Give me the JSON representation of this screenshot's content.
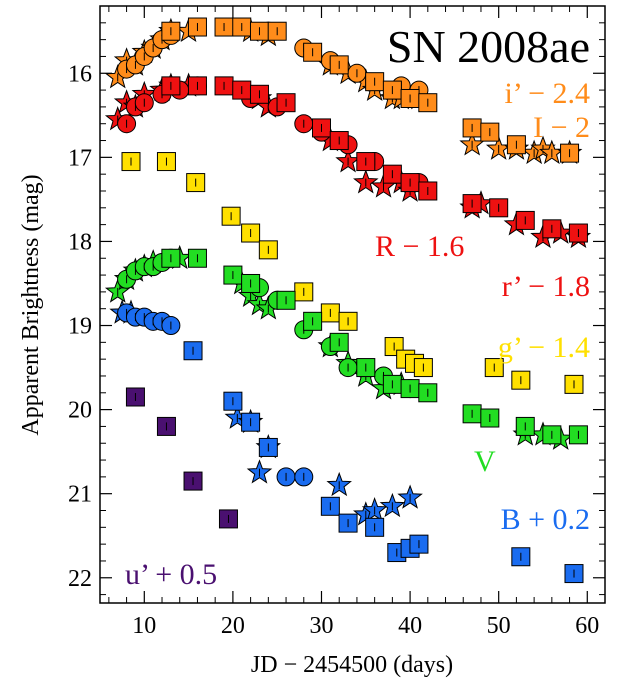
{
  "chart_data": {
    "type": "scatter",
    "title": "SN 2008ae",
    "xlabel": "JD − 2454500 (days)",
    "ylabel": "Apparent Brightness (mag)",
    "xlim": [
      5,
      62
    ],
    "ylim": [
      22.3,
      15.2
    ],
    "y_inverted": true,
    "x_ticks": [
      10,
      20,
      30,
      40,
      50,
      60
    ],
    "y_ticks": [
      16,
      17,
      18,
      19,
      20,
      21,
      22
    ],
    "colors": {
      "orange": "#ff8c1a",
      "red": "#ee1111",
      "yellow": "#ffe000",
      "green": "#22dd22",
      "blue": "#1a6cf0",
      "purple": "#4a1070"
    },
    "labels": [
      {
        "text": "i’ − 2.4",
        "color": "orange"
      },
      {
        "text": "I − 2",
        "color": "orange"
      },
      {
        "text": "R − 1.6",
        "color": "red"
      },
      {
        "text": "r’ − 1.8",
        "color": "red"
      },
      {
        "text": "g’ − 1.4",
        "color": "yellow"
      },
      {
        "text": "V",
        "color": "green"
      },
      {
        "text": "B + 0.2",
        "color": "blue"
      },
      {
        "text": "u’ + 0.5",
        "color": "purple"
      }
    ],
    "series": [
      {
        "color": "orange",
        "marker": "star",
        "points": [
          [
            7,
            16.05
          ],
          [
            8,
            15.85
          ],
          [
            9,
            15.9
          ],
          [
            10,
            15.75
          ],
          [
            11,
            15.7
          ],
          [
            12,
            15.6
          ],
          [
            13,
            15.5
          ],
          [
            15,
            15.5
          ],
          [
            22,
            15.5
          ],
          [
            24,
            15.55
          ],
          [
            31,
            15.9
          ],
          [
            33,
            16
          ],
          [
            35,
            16.1
          ],
          [
            36,
            16.2
          ],
          [
            38,
            16.3
          ],
          [
            39,
            16.3
          ],
          [
            41,
            16.3
          ],
          [
            47,
            16.85
          ],
          [
            50,
            16.9
          ],
          [
            52,
            16.9
          ],
          [
            54,
            16.95
          ],
          [
            55,
            16.9
          ],
          [
            56,
            16.95
          ],
          [
            58,
            16.95
          ]
        ]
      },
      {
        "color": "orange",
        "marker": "circle",
        "points": [
          [
            8,
            15.95
          ],
          [
            9,
            15.9
          ],
          [
            10,
            15.8
          ],
          [
            11,
            15.7
          ],
          [
            12,
            15.6
          ],
          [
            13,
            15.55
          ],
          [
            24,
            15.5
          ],
          [
            28,
            15.7
          ],
          [
            31,
            15.85
          ],
          [
            34,
            16
          ],
          [
            39,
            16.15
          ],
          [
            41,
            16.2
          ]
        ]
      },
      {
        "color": "orange",
        "marker": "square",
        "points": [
          [
            13,
            15.5
          ],
          [
            16,
            15.45
          ],
          [
            19,
            15.45
          ],
          [
            21,
            15.45
          ],
          [
            23,
            15.5
          ],
          [
            25,
            15.5
          ],
          [
            29,
            15.75
          ],
          [
            32,
            15.9
          ],
          [
            36,
            16.1
          ],
          [
            38,
            16.2
          ],
          [
            40,
            16.3
          ],
          [
            42,
            16.35
          ],
          [
            47,
            16.65
          ],
          [
            49,
            16.7
          ],
          [
            52,
            16.85
          ],
          [
            58,
            16.95
          ]
        ]
      },
      {
        "color": "red",
        "marker": "star",
        "points": [
          [
            7,
            16.55
          ],
          [
            8,
            16.35
          ],
          [
            9,
            16.4
          ],
          [
            10,
            16.25
          ],
          [
            12,
            16.2
          ],
          [
            13,
            16.15
          ],
          [
            15,
            16.15
          ],
          [
            23,
            16.3
          ],
          [
            24,
            16.4
          ],
          [
            31,
            16.8
          ],
          [
            33,
            17.05
          ],
          [
            35,
            17.3
          ],
          [
            37,
            17.35
          ],
          [
            39,
            17.3
          ],
          [
            40,
            17.4
          ],
          [
            47,
            17.6
          ],
          [
            48,
            17.55
          ],
          [
            52,
            17.8
          ],
          [
            55,
            17.95
          ],
          [
            57,
            17.9
          ],
          [
            59,
            17.95
          ]
        ]
      },
      {
        "color": "red",
        "marker": "circle",
        "points": [
          [
            8,
            16.6
          ],
          [
            9,
            16.4
          ],
          [
            10,
            16.35
          ],
          [
            12,
            16.25
          ],
          [
            14,
            16.2
          ],
          [
            16,
            16.15
          ],
          [
            22,
            16.3
          ],
          [
            25,
            16.4
          ],
          [
            28,
            16.6
          ],
          [
            30,
            16.7
          ],
          [
            33,
            16.85
          ],
          [
            36,
            17.05
          ],
          [
            41,
            17.3
          ]
        ]
      },
      {
        "color": "red",
        "marker": "square",
        "points": [
          [
            13,
            16.15
          ],
          [
            16,
            16.15
          ],
          [
            19,
            16.15
          ],
          [
            21,
            16.2
          ],
          [
            23,
            16.25
          ],
          [
            26,
            16.35
          ],
          [
            30,
            16.65
          ],
          [
            32,
            16.8
          ],
          [
            35,
            17.05
          ],
          [
            38,
            17.2
          ],
          [
            40,
            17.3
          ],
          [
            42,
            17.4
          ],
          [
            47,
            17.55
          ],
          [
            50,
            17.6
          ],
          [
            53,
            17.75
          ],
          [
            56,
            17.85
          ],
          [
            59,
            17.9
          ]
        ]
      },
      {
        "color": "yellow",
        "marker": "square",
        "points": [
          [
            8.5,
            17.05
          ],
          [
            12.5,
            17.05
          ],
          [
            15.8,
            17.3
          ],
          [
            19.8,
            17.7
          ],
          [
            22,
            17.9
          ],
          [
            24,
            18.1
          ],
          [
            28,
            18.6
          ],
          [
            31,
            18.85
          ],
          [
            33,
            18.95
          ],
          [
            38.2,
            19.25
          ],
          [
            39.5,
            19.4
          ],
          [
            40.5,
            19.45
          ],
          [
            41.5,
            19.5
          ],
          [
            49.5,
            19.5
          ],
          [
            52.5,
            19.65
          ],
          [
            58.5,
            19.7
          ]
        ]
      },
      {
        "color": "green",
        "marker": "star",
        "points": [
          [
            7,
            18.6
          ],
          [
            8,
            18.45
          ],
          [
            9,
            18.35
          ],
          [
            10,
            18.3
          ],
          [
            11,
            18.25
          ],
          [
            14,
            18.2
          ],
          [
            21,
            18.5
          ],
          [
            22,
            18.65
          ],
          [
            23,
            18.75
          ],
          [
            24,
            18.8
          ],
          [
            31,
            19.25
          ],
          [
            33,
            19.45
          ],
          [
            35,
            19.6
          ],
          [
            37,
            19.75
          ],
          [
            39,
            19.7
          ],
          [
            53,
            20.3
          ],
          [
            55,
            20.3
          ],
          [
            57,
            20.35
          ]
        ]
      },
      {
        "color": "green",
        "marker": "circle",
        "points": [
          [
            8,
            18.45
          ],
          [
            9,
            18.35
          ],
          [
            10,
            18.3
          ],
          [
            11,
            18.3
          ],
          [
            12,
            18.25
          ],
          [
            13,
            18.2
          ],
          [
            23,
            18.55
          ],
          [
            25,
            18.7
          ],
          [
            28,
            19.05
          ],
          [
            31,
            19.25
          ],
          [
            33,
            19.5
          ],
          [
            37,
            19.6
          ],
          [
            40,
            19.75
          ]
        ]
      },
      {
        "color": "green",
        "marker": "square",
        "points": [
          [
            13,
            18.2
          ],
          [
            16,
            18.2
          ],
          [
            20,
            18.4
          ],
          [
            22,
            18.5
          ],
          [
            26,
            18.7
          ],
          [
            29,
            18.95
          ],
          [
            32,
            19.2
          ],
          [
            35,
            19.5
          ],
          [
            38,
            19.7
          ],
          [
            40,
            19.75
          ],
          [
            42,
            19.8
          ],
          [
            47,
            20.05
          ],
          [
            49,
            20.1
          ],
          [
            53,
            20.2
          ],
          [
            56,
            20.3
          ],
          [
            59,
            20.3
          ]
        ]
      },
      {
        "color": "blue",
        "marker": "star",
        "points": [
          [
            7.5,
            18.85
          ],
          [
            8.5,
            18.85
          ],
          [
            20.5,
            20.1
          ],
          [
            22,
            20.15
          ],
          [
            23,
            20.75
          ],
          [
            24,
            20.45
          ],
          [
            32,
            20.9
          ],
          [
            35,
            21.25
          ],
          [
            36,
            21.2
          ],
          [
            38,
            21.15
          ],
          [
            40,
            21.05
          ]
        ]
      },
      {
        "color": "blue",
        "marker": "circle",
        "points": [
          [
            8,
            18.85
          ],
          [
            9,
            18.9
          ],
          [
            10,
            18.9
          ],
          [
            11,
            18.95
          ],
          [
            12,
            18.95
          ],
          [
            13,
            19
          ],
          [
            26,
            20.8
          ],
          [
            28,
            20.8
          ]
        ]
      },
      {
        "color": "blue",
        "marker": "square",
        "points": [
          [
            15.5,
            19.3
          ],
          [
            20,
            19.9
          ],
          [
            22,
            20.15
          ],
          [
            24,
            20.45
          ],
          [
            31,
            21.15
          ],
          [
            33,
            21.35
          ],
          [
            36,
            21.4
          ],
          [
            38.5,
            21.7
          ],
          [
            40,
            21.65
          ],
          [
            41,
            21.6
          ],
          [
            52.5,
            21.75
          ],
          [
            58.5,
            21.95
          ]
        ]
      },
      {
        "color": "purple",
        "marker": "square",
        "points": [
          [
            9,
            19.85
          ],
          [
            12.5,
            20.2
          ],
          [
            15.5,
            20.85
          ],
          [
            19.5,
            21.3
          ]
        ]
      }
    ]
  }
}
